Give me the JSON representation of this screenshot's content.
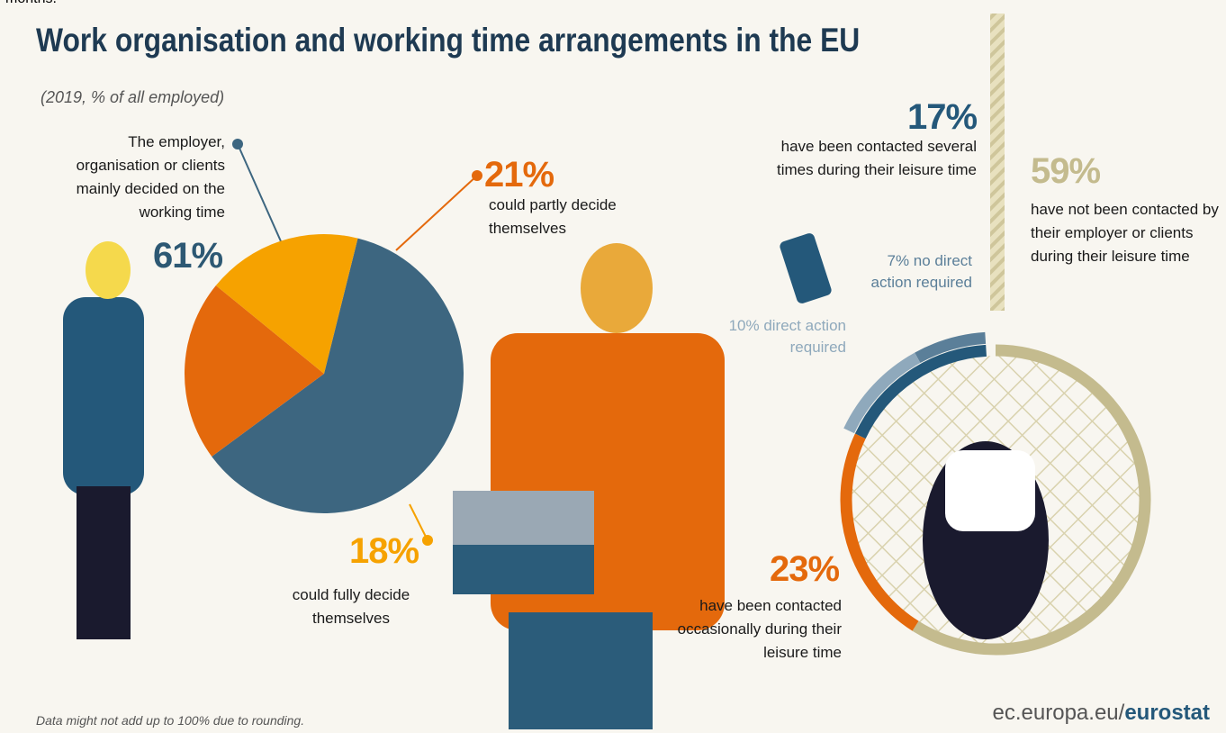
{
  "top_fragment": "months.",
  "chart_data": [
    {
      "type": "pie",
      "title": "Work organisation and working time arrangements in the EU",
      "subtitle": "(2019, % of all employed)",
      "categories": [
        "The employer, organisation or clients mainly decided on the working time",
        "could partly decide themselves",
        "could fully decide themselves"
      ],
      "values": [
        61,
        21,
        18
      ],
      "value_labels": [
        "61%",
        "21%",
        "18%"
      ],
      "colors": [
        "#3d6680",
        "#e4690c",
        "#f6a200"
      ]
    },
    {
      "type": "donut",
      "categories": [
        "have not been contacted by their employer or clients during their leisure time",
        "have been contacted occasionally during their leisure time",
        "have been contacted several times during their leisure time"
      ],
      "values": [
        59,
        23,
        17
      ],
      "value_labels": [
        "59%",
        "23%",
        "17%"
      ],
      "colors": [
        "#c4bb8e",
        "#e4690c",
        "#24587a"
      ],
      "breakdown": {
        "categories": [
          "no direct action required",
          "direct action required"
        ],
        "values": [
          7,
          10
        ],
        "value_labels": [
          "7%",
          "10%"
        ],
        "colors": [
          "#5b7f99",
          "#8fa9bc"
        ]
      }
    }
  ],
  "footnote": "Data might not add up to 100% due to rounding.",
  "source": {
    "domain": "ec.europa.eu/",
    "brand": "eurostat"
  }
}
